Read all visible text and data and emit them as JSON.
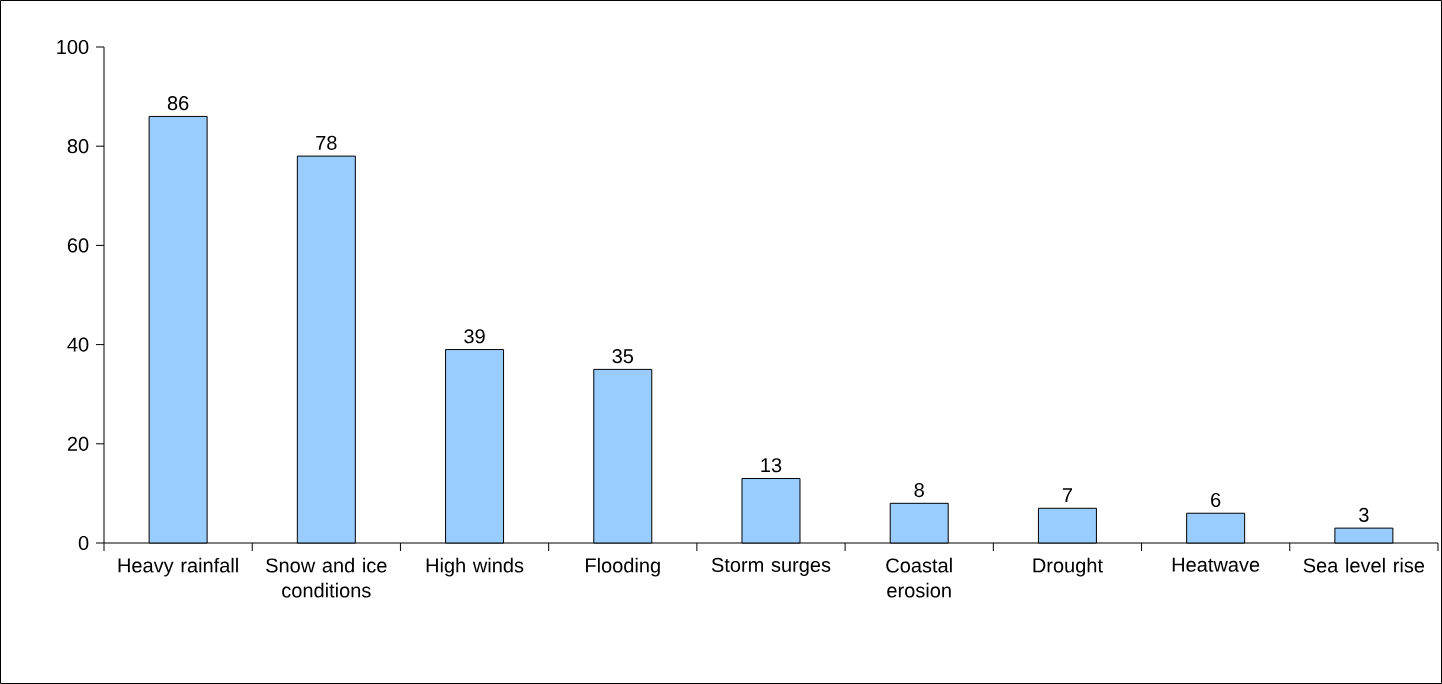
{
  "chart_data": {
    "type": "bar",
    "categories": [
      "Heavy rainfall",
      "Snow and ice conditions",
      "High winds",
      "Flooding",
      "Storm surges",
      "Coastal erosion",
      "Drought",
      "Heatwave",
      "Sea level rise"
    ],
    "values": [
      86,
      78,
      39,
      35,
      13,
      8,
      7,
      6,
      3
    ],
    "color": "#99ccff",
    "ylim": [
      0,
      100
    ],
    "yticks": [
      0,
      20,
      40,
      60,
      80,
      100
    ],
    "data_labels": true
  }
}
